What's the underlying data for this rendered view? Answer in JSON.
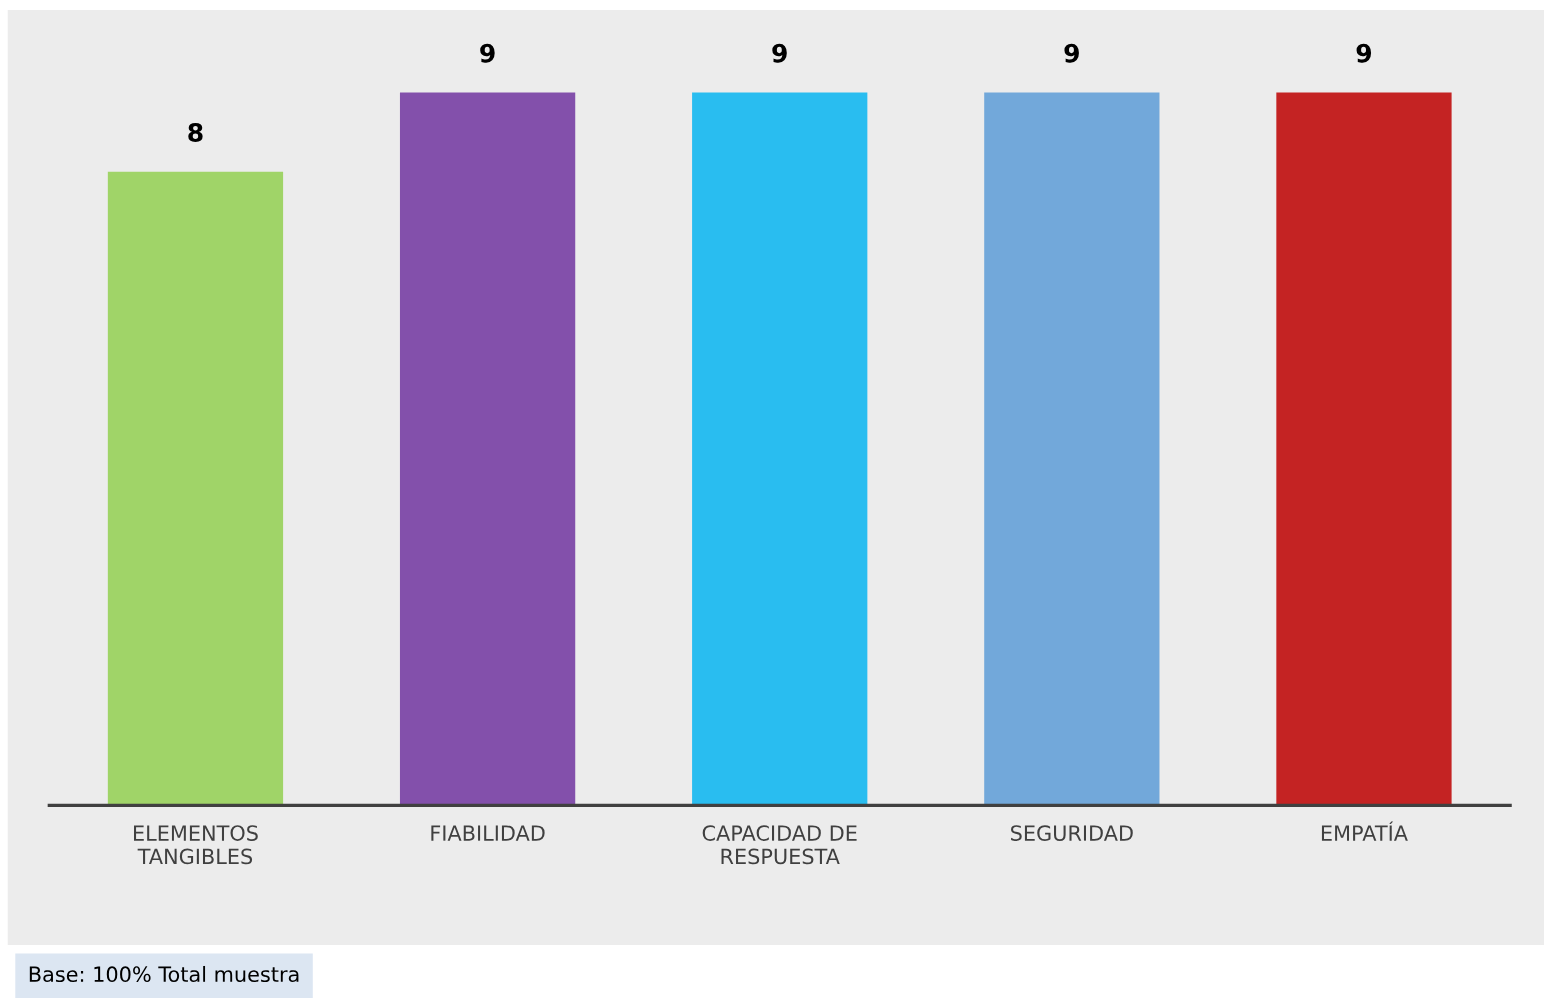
{
  "chart_data": {
    "type": "bar",
    "categories": [
      "ELEMENTOS\nTANGIBLES",
      "FIABILIDAD",
      "CAPACIDAD DE\nRESPUESTA",
      "SEGURIDAD",
      "EMPATÍA"
    ],
    "values": [
      8,
      9,
      9,
      9,
      9
    ],
    "colors": [
      "#a0d468",
      "#8350ab",
      "#29bdf0",
      "#72a8da",
      "#c42323"
    ],
    "data_labels": true,
    "tick_labels": "x",
    "grid": false,
    "legend": false,
    "annotations": [
      "Base: 100% Total muestra"
    ]
  }
}
